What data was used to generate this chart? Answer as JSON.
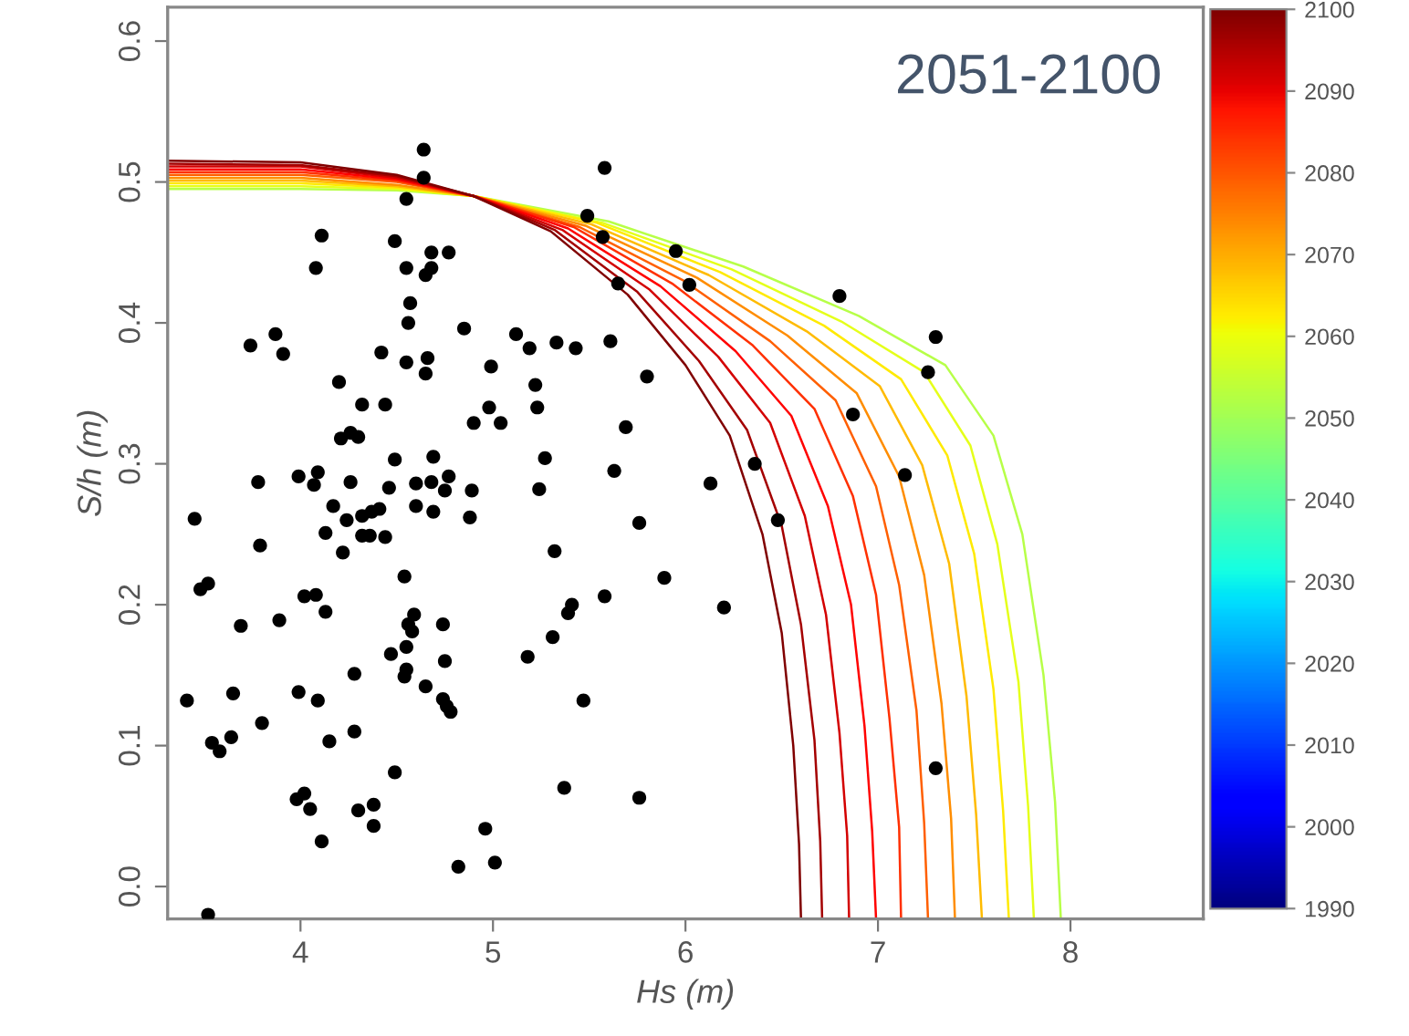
{
  "chart_data": {
    "type": "scatter",
    "xlabel": "Hs (m)",
    "ylabel": "S/h (m)",
    "annotations": [
      "2051-2100"
    ],
    "xlim": [
      3.31,
      8.69
    ],
    "ylim": [
      -0.023,
      0.624
    ],
    "xticks": [
      4,
      5,
      6,
      7,
      8
    ],
    "yticks": [
      {
        "value": 0,
        "label": "0.0"
      },
      0.1,
      0.2,
      0.3,
      0.4,
      0.5,
      0.6
    ],
    "clim": [
      1990,
      2100
    ],
    "cticks": [
      1990,
      2000,
      2010,
      2020,
      2030,
      2040,
      2050,
      2060,
      2070,
      2080,
      2090,
      2100
    ],
    "grid": false,
    "legend": false,
    "line_style": "solid",
    "series": [
      {
        "type": "line",
        "color": "#b7ff48",
        "x": [
          3.31,
          4.0,
          4.5,
          4.9,
          5.6,
          6.3,
          6.9,
          7.35,
          7.6,
          7.75,
          7.86,
          7.92,
          7.95
        ],
        "values": [
          0.495,
          0.495,
          0.494,
          0.49,
          0.472,
          0.44,
          0.405,
          0.37,
          0.32,
          0.25,
          0.15,
          0.06,
          -0.023
        ]
      },
      {
        "type": "line",
        "color": "#e5ff1a",
        "x": [
          3.31,
          4.0,
          4.5,
          4.9,
          5.57,
          6.24,
          6.81,
          7.24,
          7.48,
          7.62,
          7.73,
          7.78,
          7.81
        ],
        "values": [
          0.497,
          0.497,
          0.495,
          0.49,
          0.471,
          0.438,
          0.401,
          0.365,
          0.313,
          0.243,
          0.145,
          0.057,
          -0.023
        ]
      },
      {
        "type": "line",
        "color": "#ffea00",
        "x": [
          3.31,
          4.0,
          4.5,
          4.9,
          5.54,
          6.18,
          6.72,
          7.12,
          7.36,
          7.5,
          7.6,
          7.65,
          7.68
        ],
        "values": [
          0.499,
          0.499,
          0.496,
          0.49,
          0.471,
          0.436,
          0.398,
          0.36,
          0.306,
          0.236,
          0.14,
          0.054,
          -0.023
        ]
      },
      {
        "type": "line",
        "color": "#ffbb00",
        "x": [
          3.31,
          4.0,
          4.5,
          4.9,
          5.51,
          6.12,
          6.63,
          7.01,
          7.23,
          7.37,
          7.46,
          7.51,
          7.54
        ],
        "values": [
          0.501,
          0.501,
          0.497,
          0.49,
          0.47,
          0.434,
          0.394,
          0.355,
          0.299,
          0.229,
          0.135,
          0.051,
          -0.023
        ]
      },
      {
        "type": "line",
        "color": "#ff8d00",
        "x": [
          3.31,
          4.0,
          4.5,
          4.9,
          5.48,
          6.06,
          6.53,
          6.89,
          7.11,
          7.24,
          7.33,
          7.38,
          7.4
        ],
        "values": [
          0.503,
          0.503,
          0.498,
          0.49,
          0.469,
          0.432,
          0.391,
          0.35,
          0.291,
          0.221,
          0.13,
          0.048,
          -0.023
        ]
      },
      {
        "type": "line",
        "color": "#ff5f00",
        "x": [
          3.31,
          4.0,
          4.5,
          4.9,
          5.45,
          5.99,
          6.44,
          6.78,
          6.99,
          7.11,
          7.2,
          7.24,
          7.26
        ],
        "values": [
          0.505,
          0.505,
          0.5,
          0.49,
          0.468,
          0.43,
          0.387,
          0.345,
          0.284,
          0.214,
          0.125,
          0.045,
          -0.023
        ]
      },
      {
        "type": "line",
        "color": "#ff3000",
        "x": [
          3.31,
          4.0,
          4.5,
          4.9,
          5.42,
          5.93,
          6.35,
          6.67,
          6.87,
          6.99,
          7.06,
          7.11,
          7.12
        ],
        "values": [
          0.507,
          0.507,
          0.501,
          0.49,
          0.468,
          0.428,
          0.384,
          0.339,
          0.277,
          0.207,
          0.119,
          0.042,
          -0.023
        ]
      },
      {
        "type": "line",
        "color": "#ff0200",
        "x": [
          3.31,
          4.0,
          4.5,
          4.9,
          5.39,
          5.87,
          6.26,
          6.55,
          6.74,
          6.86,
          6.93,
          6.97,
          6.99
        ],
        "values": [
          0.509,
          0.509,
          0.502,
          0.49,
          0.467,
          0.426,
          0.38,
          0.334,
          0.27,
          0.2,
          0.114,
          0.039,
          -0.023
        ]
      },
      {
        "type": "line",
        "color": "#d30000",
        "x": [
          3.31,
          4.0,
          4.5,
          4.9,
          5.36,
          5.81,
          6.17,
          6.44,
          6.62,
          6.73,
          6.8,
          6.84,
          6.85
        ],
        "values": [
          0.511,
          0.511,
          0.503,
          0.49,
          0.466,
          0.424,
          0.376,
          0.329,
          0.263,
          0.193,
          0.109,
          0.036,
          -0.023
        ]
      },
      {
        "type": "line",
        "color": "#a40000",
        "x": [
          3.31,
          4.0,
          4.5,
          4.9,
          5.32,
          5.75,
          6.07,
          6.32,
          6.5,
          6.6,
          6.67,
          6.7,
          6.71
        ],
        "values": [
          0.513,
          0.512,
          0.504,
          0.49,
          0.466,
          0.422,
          0.373,
          0.324,
          0.256,
          0.186,
          0.104,
          0.032,
          -0.023
        ]
      },
      {
        "type": "line",
        "color": "#800000",
        "x": [
          3.31,
          4.0,
          4.5,
          4.9,
          5.3,
          5.7,
          6.0,
          6.23,
          6.4,
          6.5,
          6.56,
          6.59,
          6.6
        ],
        "values": [
          0.515,
          0.514,
          0.505,
          0.49,
          0.465,
          0.42,
          0.37,
          0.32,
          0.25,
          0.18,
          0.1,
          0.03,
          -0.023
        ]
      },
      {
        "marker": "circle",
        "color": "#000000",
        "x": [
          4.64,
          5.58,
          4.64,
          4.55,
          4.11,
          4.08,
          4.49,
          4.68,
          4.77,
          4.55,
          4.65,
          4.68,
          4.57,
          4.56,
          5.49,
          5.57,
          5.65,
          5.95,
          6.02,
          3.74,
          3.87,
          3.91,
          4.42,
          4.55,
          4.66,
          4.65,
          4.85,
          4.99,
          5.12,
          5.19,
          5.33,
          5.43,
          5.61,
          5.8,
          4.2,
          4.32,
          4.44,
          4.21,
          4.26,
          4.3,
          4.98,
          5.04,
          4.9,
          5.22,
          5.23,
          5.69,
          4.49,
          4.69,
          5.27,
          5.63,
          3.78,
          3.99,
          4.09,
          4.07,
          4.26,
          4.46,
          4.6,
          4.68,
          4.77,
          4.75,
          4.89,
          5.24,
          6.13,
          3.45,
          4.17,
          4.24,
          4.32,
          4.37,
          4.41,
          4.6,
          4.69,
          4.13,
          4.22,
          4.32,
          4.36,
          4.44,
          4.88,
          5.76,
          3.79,
          5.32,
          3.48,
          3.52,
          4.54,
          5.89,
          4.02,
          4.08,
          4.13,
          5.58,
          5.41,
          5.39,
          6.2,
          3.69,
          3.89,
          4.59,
          4.56,
          4.74,
          4.58,
          5.31,
          4.55,
          4.47,
          5.18,
          4.75,
          4.55,
          4.54,
          4.28,
          4.65,
          3.41,
          3.65,
          3.99,
          4.09,
          4.74,
          4.76,
          4.78,
          5.47,
          3.8,
          3.54,
          3.58,
          3.64,
          4.15,
          4.28,
          4.49,
          3.98,
          4.02,
          4.05,
          4.3,
          4.38,
          4.38,
          4.11,
          5.37,
          5.76,
          4.96,
          4.82,
          5.01,
          3.52,
          6.8,
          7.3,
          7.26,
          6.87,
          6.36,
          7.14,
          6.48,
          7.3
        ],
        "values": [
          0.523,
          0.51,
          0.503,
          0.488,
          0.462,
          0.439,
          0.458,
          0.45,
          0.45,
          0.439,
          0.434,
          0.439,
          0.414,
          0.4,
          0.476,
          0.461,
          0.428,
          0.451,
          0.427,
          0.384,
          0.392,
          0.378,
          0.379,
          0.372,
          0.375,
          0.364,
          0.396,
          0.369,
          0.392,
          0.382,
          0.386,
          0.382,
          0.387,
          0.362,
          0.358,
          0.342,
          0.342,
          0.318,
          0.322,
          0.319,
          0.34,
          0.329,
          0.329,
          0.356,
          0.34,
          0.326,
          0.303,
          0.305,
          0.304,
          0.295,
          0.287,
          0.291,
          0.294,
          0.285,
          0.287,
          0.283,
          0.286,
          0.287,
          0.291,
          0.281,
          0.281,
          0.282,
          0.286,
          0.261,
          0.27,
          0.26,
          0.263,
          0.266,
          0.268,
          0.27,
          0.266,
          0.251,
          0.237,
          0.249,
          0.249,
          0.248,
          0.262,
          0.258,
          0.242,
          0.238,
          0.211,
          0.215,
          0.22,
          0.219,
          0.206,
          0.207,
          0.195,
          0.206,
          0.2,
          0.194,
          0.198,
          0.185,
          0.189,
          0.193,
          0.186,
          0.186,
          0.181,
          0.177,
          0.17,
          0.165,
          0.163,
          0.16,
          0.154,
          0.149,
          0.151,
          0.142,
          0.132,
          0.137,
          0.138,
          0.132,
          0.133,
          0.128,
          0.124,
          0.132,
          0.116,
          0.102,
          0.096,
          0.106,
          0.103,
          0.11,
          0.081,
          0.062,
          0.066,
          0.055,
          0.054,
          0.058,
          0.043,
          0.032,
          0.07,
          0.063,
          0.041,
          0.014,
          0.017,
          -0.02,
          0.419,
          0.39,
          0.365,
          0.335,
          0.3,
          0.292,
          0.26,
          0.084
        ]
      }
    ]
  }
}
